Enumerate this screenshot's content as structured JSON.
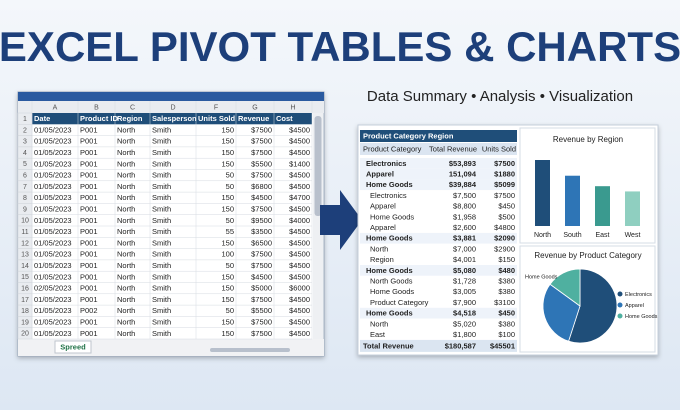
{
  "header": {
    "title": "EXCEL PIVOT TABLES & CHARTS",
    "subtitle": "Data Summary • Analysis • Visualization"
  },
  "spreadsheet": {
    "columns": [
      "A",
      "B",
      "C",
      "D",
      "F",
      "G",
      "H"
    ],
    "row_numbers": [
      1,
      2,
      3,
      4,
      5,
      6,
      7,
      8,
      9,
      10,
      11,
      12,
      13,
      14,
      15,
      16,
      17,
      18,
      19,
      20
    ],
    "header": [
      "Date",
      "Product ID",
      "Region",
      "Salesperson",
      "Units Sold",
      "Revenue",
      "Cost"
    ],
    "rows": [
      [
        "01/05/2023",
        "P001",
        "North",
        "Smith",
        150,
        "$7500",
        "$4500"
      ],
      [
        "01/05/2023",
        "P001",
        "North",
        "Smith",
        150,
        "$7500",
        "$4500"
      ],
      [
        "01/05/2023",
        "P001",
        "North",
        "Smith",
        150,
        "$7500",
        "$4500"
      ],
      [
        "01/05/2023",
        "P001",
        "North",
        "Smith",
        150,
        "$5500",
        "$1400"
      ],
      [
        "01/05/2023",
        "P001",
        "North",
        "Smith",
        50,
        "$7500",
        "$4500"
      ],
      [
        "01/05/2023",
        "P001",
        "North",
        "Smith",
        50,
        "$6800",
        "$4500"
      ],
      [
        "01/05/2023",
        "P001",
        "North",
        "Smith",
        150,
        "$4500",
        "$4700"
      ],
      [
        "01/05/2023",
        "P001",
        "North",
        "Smith",
        150,
        "$7500",
        "$4500"
      ],
      [
        "01/05/2023",
        "P001",
        "North",
        "Smith",
        50,
        "$9500",
        "$4000"
      ],
      [
        "01/05/2023",
        "P001",
        "North",
        "Smith",
        55,
        "$3500",
        "$4500"
      ],
      [
        "01/05/2023",
        "P001",
        "North",
        "Smith",
        150,
        "$6500",
        "$4500"
      ],
      [
        "01/05/2023",
        "P001",
        "North",
        "Smith",
        100,
        "$7500",
        "$4500"
      ],
      [
        "01/05/2023",
        "P001",
        "North",
        "Smith",
        50,
        "$7500",
        "$4500"
      ],
      [
        "01/05/2023",
        "P001",
        "North",
        "Smith",
        150,
        "$4500",
        "$4500"
      ],
      [
        "02/05/2023",
        "P001",
        "North",
        "Smith",
        150,
        "$5000",
        "$6000"
      ],
      [
        "01/05/2023",
        "P001",
        "North",
        "Smith",
        150,
        "$7500",
        "$4500"
      ],
      [
        "01/05/2023",
        "P002",
        "North",
        "Smith",
        50,
        "$5500",
        "$4500"
      ],
      [
        "01/05/2023",
        "P001",
        "North",
        "Smith",
        150,
        "$7500",
        "$4500"
      ],
      [
        "01/05/2023",
        "P001",
        "North",
        "Smith",
        150,
        "$7500",
        "$4500"
      ]
    ],
    "sheet_tab": "Spreed"
  },
  "pivot": {
    "header": [
      "Product Category",
      "Region"
    ],
    "columns": [
      "Product Category",
      "Total Revenue",
      "Units Sold"
    ],
    "rows": [
      {
        "label": "Electronics",
        "revenue": "$53,893",
        "units": "$7500",
        "bold": true
      },
      {
        "label": "Apparel",
        "revenue": "151,094",
        "units": "$1880",
        "bold": true
      },
      {
        "label": "Home Goods",
        "revenue": "$39,884",
        "units": "$5099",
        "bold": true
      },
      {
        "label": "Electronics",
        "revenue": "$7,500",
        "units": "$7500",
        "bold": false
      },
      {
        "label": "Apparel",
        "revenue": "$8,800",
        "units": "$450",
        "bold": false
      },
      {
        "label": "Home Goods",
        "revenue": "$1,958",
        "units": "$500",
        "bold": false
      },
      {
        "label": "Apparel",
        "revenue": "$2,600",
        "units": "$4800",
        "bold": false
      },
      {
        "label": "Home Goods",
        "revenue": "$3,881",
        "units": "$2090",
        "bold": true
      },
      {
        "label": "North",
        "revenue": "$7,000",
        "units": "$2900",
        "bold": false
      },
      {
        "label": "Region",
        "revenue": "$4,001",
        "units": "$150",
        "bold": false
      },
      {
        "label": "Home Goods",
        "revenue": "$5,080",
        "units": "$480",
        "bold": true
      },
      {
        "label": "North Goods",
        "revenue": "$1,728",
        "units": "$380",
        "bold": false
      },
      {
        "label": "Home Goods",
        "revenue": "$3,005",
        "units": "$380",
        "bold": false
      },
      {
        "label": "Product Category",
        "revenue": "$7,900",
        "units": "$3100",
        "bold": false
      },
      {
        "label": "Home Goods",
        "revenue": "$4,518",
        "units": "$450",
        "bold": true
      },
      {
        "label": "North",
        "revenue": "$5,020",
        "units": "$380",
        "bold": false
      },
      {
        "label": "East",
        "revenue": "$1,800",
        "units": "$100",
        "bold": false
      }
    ],
    "total": {
      "label": "Total Revenue",
      "revenue": "$180,587",
      "units": "$45501"
    }
  },
  "charts": [
    {
      "type": "bar",
      "title": "Revenue by Region",
      "categories": [
        "North",
        "South",
        "East",
        "West"
      ],
      "values": [
        63,
        48,
        38,
        33
      ],
      "colors": [
        "#1f4e79",
        "#2e75b6",
        "#3a9a8f",
        "#8fcfc0"
      ]
    },
    {
      "type": "pie",
      "title": "Revenue by Product Category",
      "categories": [
        "Electronics",
        "Apparel",
        "Home Goods"
      ],
      "values": [
        55,
        30,
        15
      ],
      "colors": [
        "#1f4e79",
        "#2e75b6",
        "#4fb0a0"
      ]
    }
  ]
}
